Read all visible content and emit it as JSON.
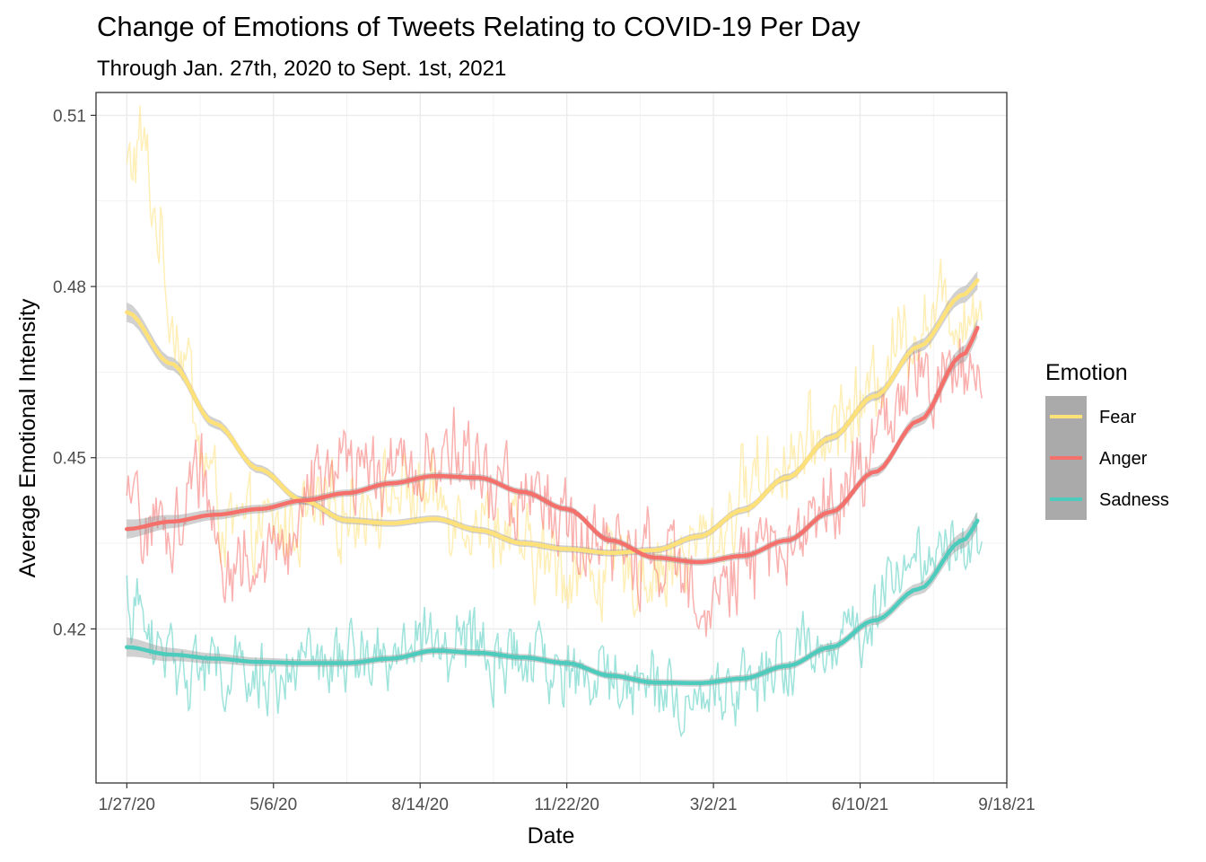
{
  "chart_data": {
    "type": "line",
    "title": "Change of Emotions of Tweets Relating to COVID-19 Per Day",
    "subtitle": "Through Jan. 27th, 2020 to Sept. 1st, 2021",
    "xlabel": "Date",
    "ylabel": "Average Emotional Intensity",
    "x_range": [
      "2020-01-06",
      "2021-09-18"
    ],
    "ylim": [
      0.393,
      0.514
    ],
    "x_ticks": [
      {
        "date": "2020-01-27",
        "label": "1/27/20"
      },
      {
        "date": "2020-05-06",
        "label": "5/6/20"
      },
      {
        "date": "2020-08-14",
        "label": "8/14/20"
      },
      {
        "date": "2020-11-22",
        "label": "11/22/20"
      },
      {
        "date": "2021-03-02",
        "label": "3/2/21"
      },
      {
        "date": "2021-06-10",
        "label": "6/10/21"
      },
      {
        "date": "2021-09-18",
        "label": "9/18/21"
      }
    ],
    "y_ticks": [
      {
        "value": 0.42,
        "label": "0.42"
      },
      {
        "value": 0.45,
        "label": "0.45"
      },
      {
        "value": 0.48,
        "label": "0.48"
      },
      {
        "value": 0.51,
        "label": "0.51"
      }
    ],
    "grid": true,
    "legend": {
      "title": "Emotion",
      "position": "right"
    },
    "daily_range": [
      "2020-01-27",
      "2021-09-01"
    ],
    "series": [
      {
        "name": "Fear",
        "color": "#FFE17A",
        "smooth": [
          [
            "2020-01-27",
            0.4755
          ],
          [
            "2020-02-26",
            0.4665
          ],
          [
            "2020-03-27",
            0.456
          ],
          [
            "2020-04-26",
            0.448
          ],
          [
            "2020-05-26",
            0.4425
          ],
          [
            "2020-06-25",
            0.439
          ],
          [
            "2020-07-25",
            0.4385
          ],
          [
            "2020-08-24",
            0.4393
          ],
          [
            "2020-09-23",
            0.4373
          ],
          [
            "2020-10-23",
            0.435
          ],
          [
            "2020-11-22",
            0.434
          ],
          [
            "2020-12-22",
            0.4333
          ],
          [
            "2021-01-21",
            0.4338
          ],
          [
            "2021-02-20",
            0.4362
          ],
          [
            "2021-03-22",
            0.4408
          ],
          [
            "2021-04-21",
            0.4465
          ],
          [
            "2021-05-21",
            0.4535
          ],
          [
            "2021-06-20",
            0.4608
          ],
          [
            "2021-07-20",
            0.4695
          ],
          [
            "2021-08-19",
            0.4785
          ],
          [
            "2021-09-01",
            0.4815
          ]
        ],
        "daily_anchors": [
          [
            "2020-01-27",
            0.5
          ],
          [
            "2020-02-06",
            0.505
          ],
          [
            "2020-02-16",
            0.492
          ],
          [
            "2020-02-26",
            0.476
          ],
          [
            "2020-03-07",
            0.468
          ],
          [
            "2020-03-17",
            0.451
          ],
          [
            "2020-04-06",
            0.437
          ],
          [
            "2020-05-06",
            0.437
          ],
          [
            "2020-06-05",
            0.44
          ],
          [
            "2020-07-05",
            0.442
          ],
          [
            "2020-08-04",
            0.444
          ],
          [
            "2020-09-03",
            0.442
          ],
          [
            "2020-10-03",
            0.438
          ],
          [
            "2020-11-02",
            0.432
          ],
          [
            "2020-12-02",
            0.43
          ],
          [
            "2021-01-01",
            0.43
          ],
          [
            "2021-01-31",
            0.431
          ],
          [
            "2021-03-02",
            0.436
          ],
          [
            "2021-04-01",
            0.447
          ],
          [
            "2021-05-01",
            0.451
          ],
          [
            "2021-06-10",
            0.459
          ],
          [
            "2021-07-10",
            0.472
          ],
          [
            "2021-08-09",
            0.476
          ],
          [
            "2021-09-01",
            0.476
          ]
        ],
        "noise": 0.006
      },
      {
        "name": "Anger",
        "color": "#F5706B",
        "smooth": [
          [
            "2020-01-27",
            0.4375
          ],
          [
            "2020-02-26",
            0.4388
          ],
          [
            "2020-03-27",
            0.44
          ],
          [
            "2020-04-26",
            0.441
          ],
          [
            "2020-05-26",
            0.4425
          ],
          [
            "2020-06-25",
            0.4438
          ],
          [
            "2020-07-25",
            0.4455
          ],
          [
            "2020-08-24",
            0.4468
          ],
          [
            "2020-09-23",
            0.4465
          ],
          [
            "2020-10-23",
            0.444
          ],
          [
            "2020-11-22",
            0.441
          ],
          [
            "2020-12-22",
            0.4355
          ],
          [
            "2021-01-21",
            0.4325
          ],
          [
            "2021-02-20",
            0.4317
          ],
          [
            "2021-03-22",
            0.4328
          ],
          [
            "2021-04-21",
            0.4355
          ],
          [
            "2021-05-21",
            0.4405
          ],
          [
            "2021-06-20",
            0.4475
          ],
          [
            "2021-07-20",
            0.4565
          ],
          [
            "2021-08-19",
            0.468
          ],
          [
            "2021-09-01",
            0.4735
          ]
        ],
        "daily_anchors": [
          [
            "2020-01-27",
            0.44
          ],
          [
            "2020-02-26",
            0.437
          ],
          [
            "2020-03-17",
            0.447
          ],
          [
            "2020-04-06",
            0.431
          ],
          [
            "2020-05-06",
            0.432
          ],
          [
            "2020-06-05",
            0.446
          ],
          [
            "2020-07-05",
            0.447
          ],
          [
            "2020-08-04",
            0.448
          ],
          [
            "2020-09-03",
            0.451
          ],
          [
            "2020-10-03",
            0.445
          ],
          [
            "2020-11-02",
            0.442
          ],
          [
            "2020-12-02",
            0.436
          ],
          [
            "2021-01-01",
            0.433
          ],
          [
            "2021-01-31",
            0.431
          ],
          [
            "2021-03-02",
            0.427
          ],
          [
            "2021-04-01",
            0.432
          ],
          [
            "2021-05-01",
            0.438
          ],
          [
            "2021-06-10",
            0.447
          ],
          [
            "2021-07-10",
            0.461
          ],
          [
            "2021-08-09",
            0.466
          ],
          [
            "2021-09-01",
            0.466
          ]
        ],
        "noise": 0.006
      },
      {
        "name": "Sadness",
        "color": "#4DCCBD",
        "smooth": [
          [
            "2020-01-27",
            0.4168
          ],
          [
            "2020-02-26",
            0.4155
          ],
          [
            "2020-03-27",
            0.4148
          ],
          [
            "2020-04-26",
            0.4142
          ],
          [
            "2020-05-26",
            0.414
          ],
          [
            "2020-06-25",
            0.414
          ],
          [
            "2020-07-25",
            0.4148
          ],
          [
            "2020-08-24",
            0.4162
          ],
          [
            "2020-09-23",
            0.4158
          ],
          [
            "2020-10-23",
            0.415
          ],
          [
            "2020-11-22",
            0.414
          ],
          [
            "2020-12-22",
            0.4118
          ],
          [
            "2021-01-21",
            0.4106
          ],
          [
            "2021-02-20",
            0.4105
          ],
          [
            "2021-03-22",
            0.4113
          ],
          [
            "2021-04-21",
            0.4135
          ],
          [
            "2021-05-21",
            0.4168
          ],
          [
            "2021-06-20",
            0.4215
          ],
          [
            "2021-07-20",
            0.427
          ],
          [
            "2021-08-19",
            0.4355
          ],
          [
            "2021-09-01",
            0.4395
          ]
        ],
        "daily_anchors": [
          [
            "2020-01-27",
            0.425
          ],
          [
            "2020-02-16",
            0.417
          ],
          [
            "2020-03-17",
            0.413
          ],
          [
            "2020-04-16",
            0.411
          ],
          [
            "2020-05-16",
            0.412
          ],
          [
            "2020-06-15",
            0.414
          ],
          [
            "2020-07-15",
            0.416
          ],
          [
            "2020-08-14",
            0.417
          ],
          [
            "2020-09-13",
            0.417
          ],
          [
            "2020-10-13",
            0.414
          ],
          [
            "2020-11-12",
            0.413
          ],
          [
            "2020-12-12",
            0.411
          ],
          [
            "2021-01-11",
            0.411
          ],
          [
            "2021-02-10",
            0.408
          ],
          [
            "2021-03-12",
            0.409
          ],
          [
            "2021-04-11",
            0.413
          ],
          [
            "2021-05-11",
            0.416
          ],
          [
            "2021-06-10",
            0.42
          ],
          [
            "2021-07-10",
            0.432
          ],
          [
            "2021-08-09",
            0.436
          ],
          [
            "2021-09-01",
            0.436
          ]
        ],
        "noise": 0.005
      }
    ]
  }
}
